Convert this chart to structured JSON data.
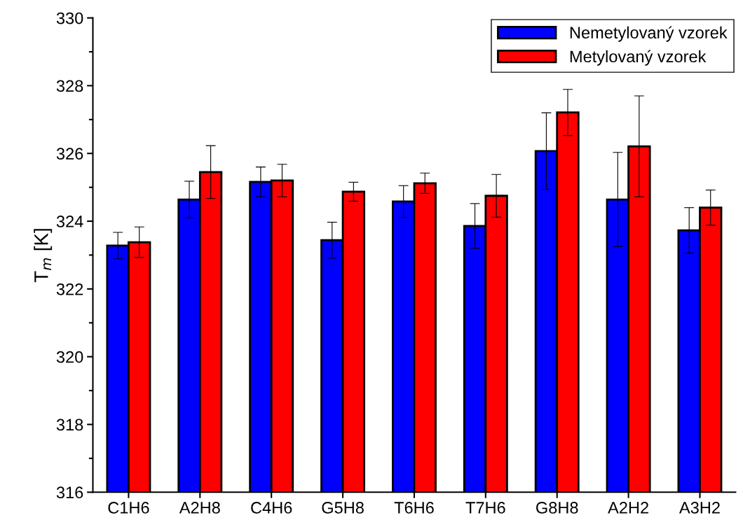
{
  "chart_data": {
    "type": "bar",
    "ylabel": "T$_{m}$ [K]",
    "categories": [
      "C1H6",
      "A2H8",
      "C4H6",
      "G5H8",
      "T6H6",
      "T7H6",
      "G8H8",
      "A2H2",
      "A3H2"
    ],
    "series": [
      {
        "name": "Nemetylovaný vzorek",
        "color": "#0000ff",
        "values": [
          323.28,
          324.64,
          325.16,
          323.44,
          324.58,
          323.86,
          326.07,
          324.64,
          323.73
        ],
        "errors": [
          0.39,
          0.54,
          0.44,
          0.53,
          0.47,
          0.66,
          1.13,
          1.39,
          0.67
        ]
      },
      {
        "name": "Metylovaný vzorek",
        "color": "#ff0000",
        "values": [
          323.38,
          325.45,
          325.2,
          324.87,
          325.12,
          324.75,
          327.21,
          326.21,
          324.4
        ],
        "errors": [
          0.45,
          0.78,
          0.48,
          0.28,
          0.3,
          0.63,
          0.68,
          1.49,
          0.52
        ]
      }
    ],
    "ylim": [
      316,
      330
    ],
    "yticks": [
      316,
      318,
      320,
      322,
      324,
      326,
      328,
      330
    ],
    "grid": false,
    "legend": "top right"
  }
}
